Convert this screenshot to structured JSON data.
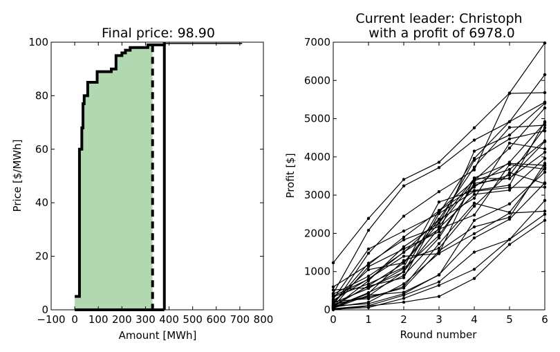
{
  "chart_data": [
    {
      "type": "area",
      "title": "Final price: 98.90",
      "xlabel": "Amount [MWh]",
      "ylabel": "Price [$/MWh]",
      "xlim": [
        -100,
        800
      ],
      "ylim": [
        0,
        100
      ],
      "xticks": [
        "−100",
        "0",
        "100",
        "200",
        "300",
        "400",
        "500",
        "600",
        "700",
        "800"
      ],
      "yticks": [
        "0",
        "20",
        "40",
        "60",
        "80",
        "100"
      ],
      "supply_curve": [
        [
          0,
          5
        ],
        [
          20,
          5
        ],
        [
          20,
          60
        ],
        [
          30,
          60
        ],
        [
          30,
          68
        ],
        [
          35,
          68
        ],
        [
          35,
          77
        ],
        [
          40,
          77
        ],
        [
          40,
          80
        ],
        [
          55,
          80
        ],
        [
          55,
          85
        ],
        [
          95,
          85
        ],
        [
          95,
          89
        ],
        [
          155,
          89
        ],
        [
          155,
          90
        ],
        [
          175,
          90
        ],
        [
          175,
          95
        ],
        [
          200,
          95
        ],
        [
          200,
          96
        ],
        [
          215,
          96
        ],
        [
          215,
          97
        ],
        [
          235,
          97
        ],
        [
          235,
          98
        ],
        [
          310,
          98
        ],
        [
          310,
          99
        ],
        [
          380,
          99
        ],
        [
          380,
          99.5
        ],
        [
          710,
          99.5
        ]
      ],
      "demand_line": [
        [
          380,
          100
        ],
        [
          380,
          0
        ]
      ],
      "cleared_amount": 330,
      "final_price": 98.9,
      "fill_color": "#b2d8b2"
    },
    {
      "type": "line",
      "title": "Current leader: Christoph",
      "subtitle": "with a profit of 6978.0",
      "xlabel": "Round number",
      "ylabel": "Profit [$]",
      "xlim": [
        0,
        6
      ],
      "ylim": [
        0,
        7000
      ],
      "xticks": [
        "0",
        "1",
        "2",
        "3",
        "4",
        "5",
        "6"
      ],
      "yticks": [
        "0",
        "1000",
        "2000",
        "3000",
        "4000",
        "5000",
        "6000",
        "7000"
      ],
      "x": [
        0,
        1,
        2,
        3,
        4,
        5,
        6
      ],
      "series": [
        {
          "values": [
            1230,
            2390,
            3410,
            3860,
            4760,
            5670,
            6978
          ]
        },
        {
          "values": [
            430,
            2080,
            3240,
            3720,
            4440,
            4920,
            6150
          ]
        },
        {
          "values": [
            280,
            1590,
            2060,
            2520,
            3960,
            4920,
            5430
          ]
        },
        {
          "values": [
            120,
            1480,
            2450,
            3090,
            3660,
            5660,
            5680
          ]
        },
        {
          "values": [
            80,
            1130,
            1590,
            2040,
            4150,
            4570,
            5400
          ]
        },
        {
          "values": [
            410,
            880,
            1500,
            2370,
            3730,
            4770,
            4830
          ]
        },
        {
          "values": [
            150,
            1220,
            1830,
            2180,
            3380,
            4230,
            5280
          ]
        },
        {
          "values": [
            600,
            1180,
            1900,
            2590,
            3210,
            3860,
            4890
          ]
        },
        {
          "values": [
            60,
            760,
            1650,
            2270,
            3910,
            4470,
            4680
          ]
        },
        {
          "values": [
            200,
            1050,
            1230,
            2360,
            2920,
            4360,
            4210
          ]
        },
        {
          "values": [
            340,
            680,
            1110,
            2820,
            3120,
            3260,
            4920
          ]
        },
        {
          "values": [
            90,
            630,
            1220,
            2270,
            3440,
            3430,
            4400
          ]
        },
        {
          "values": [
            180,
            560,
            1080,
            1950,
            3260,
            3520,
            4760
          ]
        },
        {
          "values": [
            250,
            810,
            1400,
            1470,
            3450,
            3830,
            3780
          ]
        },
        {
          "values": [
            520,
            580,
            990,
            2600,
            3380,
            3670,
            4420
          ]
        },
        {
          "values": [
            70,
            450,
            900,
            1880,
            3310,
            3440,
            4120
          ]
        },
        {
          "values": [
            360,
            800,
            1510,
            2110,
            2480,
            3800,
            3680
          ]
        },
        {
          "values": [
            130,
            360,
            1000,
            2140,
            3020,
            3130,
            3960
          ]
        },
        {
          "values": [
            50,
            430,
            1290,
            1610,
            2710,
            3590,
            3300
          ]
        },
        {
          "values": [
            110,
            620,
            840,
            2520,
            3100,
            3200,
            3210
          ]
        },
        {
          "values": [
            220,
            290,
            610,
            1730,
            2790,
            2550,
            3720
          ]
        },
        {
          "values": [
            40,
            380,
            460,
            910,
            2340,
            2770,
            3600
          ]
        },
        {
          "values": [
            150,
            330,
            570,
            1540,
            2170,
            2420,
            3830
          ]
        },
        {
          "values": [
            70,
            200,
            680,
            1480,
            1990,
            2530,
            2580
          ]
        },
        {
          "values": [
            100,
            160,
            420,
            920,
            1880,
            2370,
            3320
          ]
        },
        {
          "values": [
            30,
            110,
            380,
            730,
            1510,
            1840,
            2860
          ]
        },
        {
          "values": [
            20,
            60,
            300,
            640,
            1060,
            1840,
            2500
          ]
        },
        {
          "values": [
            0,
            100,
            200,
            350,
            820,
            1710,
            2340
          ]
        }
      ]
    }
  ]
}
